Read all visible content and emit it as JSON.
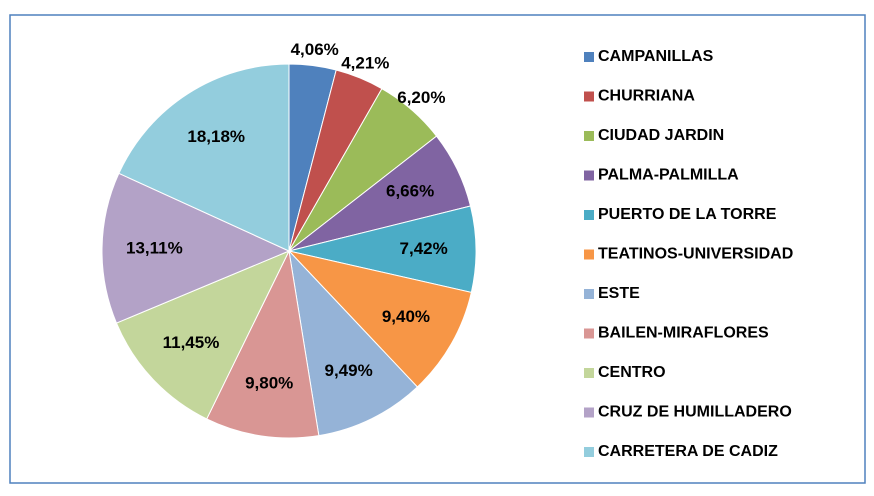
{
  "chart_data": {
    "type": "pie",
    "categories": [
      "CAMPANILLAS",
      "CHURRIANA",
      "CIUDAD JARDIN",
      "PALMA-PALMILLA",
      "PUERTO DE LA TORRE",
      "TEATINOS-UNIVERSIDAD",
      "ESTE",
      "BAILEN-MIRAFLORES",
      "CENTRO",
      "CRUZ DE HUMILLADERO",
      "CARRETERA DE CADIZ"
    ],
    "values": [
      4.06,
      4.21,
      6.2,
      6.66,
      7.42,
      9.4,
      9.49,
      9.8,
      11.45,
      13.11,
      18.18
    ],
    "value_labels": [
      "4,06%",
      "4,21%",
      "6,20%",
      "6,66%",
      "7,42%",
      "9,40%",
      "9,49%",
      "9,80%",
      "11,45%",
      "13,11%",
      "18,18%"
    ],
    "colors": [
      "#4f81bd",
      "#c0504d",
      "#9bbb59",
      "#8064a2",
      "#4bacc6",
      "#f79646",
      "#95b3d7",
      "#d99694",
      "#c3d69b",
      "#b3a2c7",
      "#93cddd"
    ],
    "legend": "right"
  }
}
